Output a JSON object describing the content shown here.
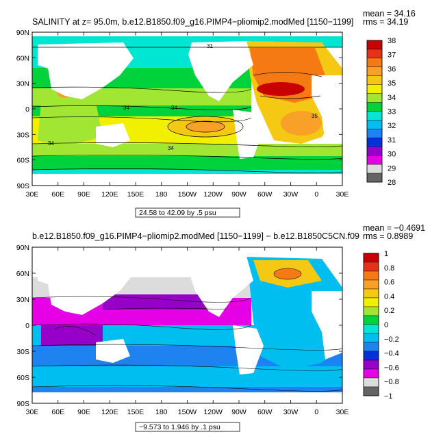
{
  "chart_data": [
    {
      "type": "heatmap",
      "title": "SALINITY at z=   95.0m, b.e12.B1850.f09_g16.PIMP4−pliomip2.modMed [1150−1199]",
      "stats": {
        "mean": "mean = 34.16",
        "rms": "rms = 34.19"
      },
      "contour_note": "24.58 to 42.09 by .5 psu",
      "contour_labels": [
        "34",
        "34",
        "34",
        "31",
        "35",
        "34"
      ],
      "x_ticks": [
        "30E",
        "60E",
        "90E",
        "120E",
        "150E",
        "180",
        "150W",
        "120W",
        "90W",
        "60W",
        "30W",
        "0",
        "30E"
      ],
      "y_ticks": [
        "90N",
        "60N",
        "30N",
        "0",
        "30S",
        "60S",
        "90S"
      ],
      "colorbar": {
        "labels": [
          "38",
          "37",
          "36",
          "35",
          "34",
          "33",
          "32",
          "31",
          "30",
          "29",
          "28"
        ],
        "colors": [
          "#c80000",
          "#e83218",
          "#f57a14",
          "#f9a028",
          "#f5c814",
          "#f0f000",
          "#a0e632",
          "#00d23c",
          "#00e6d2",
          "#00bef0",
          "#1e82f0",
          "#0032dc",
          "#9600c8",
          "#e600e6",
          "#dcdcdc",
          "#646464"
        ]
      }
    },
    {
      "type": "heatmap",
      "title": "b.e12.B1850.f09_g16.PIMP4−pliomip2.modMed [1150−1199] − b.e12.B1850C5CN.f09",
      "stats": {
        "mean": "mean = −0.4691",
        "rms": "rms = 0.8989"
      },
      "contour_note": "−9.573 to 1.946 by .1 psu",
      "x_ticks": [
        "30E",
        "60E",
        "90E",
        "120E",
        "150E",
        "180",
        "150W",
        "120W",
        "90W",
        "60W",
        "30W",
        "0",
        "30E"
      ],
      "y_ticks": [
        "90N",
        "60N",
        "30N",
        "0",
        "30S",
        "60S",
        "90S"
      ],
      "colorbar": {
        "labels": [
          "1",
          "0.8",
          "0.6",
          "0.4",
          "0.2",
          "0",
          "−0.2",
          "−0.4",
          "−0.6",
          "−0.8",
          "−1"
        ],
        "colors": [
          "#c80000",
          "#e83218",
          "#f57a14",
          "#f9a028",
          "#f5c814",
          "#f0f000",
          "#a0e632",
          "#00d23c",
          "#00e6d2",
          "#00bef0",
          "#1e82f0",
          "#0032dc",
          "#9600c8",
          "#e600e6",
          "#dcdcdc",
          "#646464"
        ]
      }
    }
  ]
}
